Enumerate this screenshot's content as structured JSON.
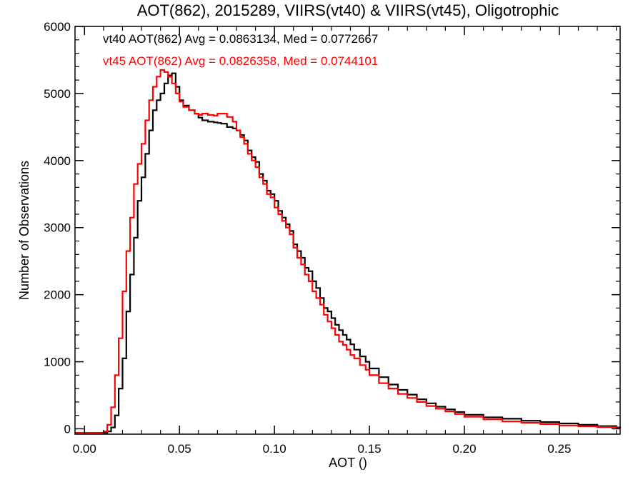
{
  "chart_data": {
    "type": "line",
    "step": true,
    "title": "AOT(862), 2015289, VIIRS(vt40) & VIIRS(vt45), Oligotrophic",
    "xlabel": "AOT ()",
    "ylabel": "Number of Observations",
    "xlim": [
      -0.005,
      0.282
    ],
    "ylim": [
      -80,
      6000
    ],
    "xticks": [
      0.0,
      0.05,
      0.1,
      0.15,
      0.2,
      0.25
    ],
    "xtick_labels": [
      "0.00",
      "0.05",
      "0.10",
      "0.15",
      "0.20",
      "0.25"
    ],
    "yticks": [
      0,
      1000,
      2000,
      3000,
      4000,
      5000,
      6000
    ],
    "ytick_labels": [
      "0",
      "1000",
      "2000",
      "3000",
      "4000",
      "5000",
      "6000"
    ],
    "grid": false,
    "annotations": [
      {
        "text": "vt40 AOT(862) Avg = 0.0863134, Med = 0.0772667",
        "color": "#000000"
      },
      {
        "text": "vt45 AOT(862) Avg = 0.0826358, Med = 0.0744101",
        "color": "#ff0000"
      }
    ],
    "series": [
      {
        "color": "#000000",
        "x": [
          -0.005,
          0.0,
          0.005,
          0.01,
          0.012,
          0.014,
          0.016,
          0.018,
          0.02,
          0.022,
          0.024,
          0.026,
          0.028,
          0.03,
          0.032,
          0.034,
          0.036,
          0.038,
          0.04,
          0.042,
          0.044,
          0.046,
          0.048,
          0.05,
          0.052,
          0.055,
          0.058,
          0.06,
          0.062,
          0.065,
          0.068,
          0.07,
          0.072,
          0.075,
          0.078,
          0.08,
          0.082,
          0.084,
          0.086,
          0.088,
          0.09,
          0.092,
          0.094,
          0.096,
          0.098,
          0.1,
          0.102,
          0.104,
          0.106,
          0.108,
          0.11,
          0.112,
          0.114,
          0.116,
          0.118,
          0.12,
          0.122,
          0.124,
          0.126,
          0.128,
          0.13,
          0.132,
          0.134,
          0.136,
          0.138,
          0.14,
          0.142,
          0.145,
          0.148,
          0.15,
          0.155,
          0.16,
          0.165,
          0.17,
          0.175,
          0.18,
          0.185,
          0.19,
          0.195,
          0.2,
          0.21,
          0.22,
          0.23,
          0.24,
          0.25,
          0.26,
          0.27,
          0.28,
          0.282
        ],
        "y": [
          -60,
          -60,
          -60,
          -60,
          -40,
          20,
          200,
          600,
          1050,
          1750,
          2300,
          2850,
          3400,
          3750,
          4100,
          4450,
          4750,
          4900,
          5000,
          5150,
          5270,
          5300,
          5100,
          4900,
          4820,
          4750,
          4700,
          4640,
          4600,
          4580,
          4570,
          4560,
          4550,
          4500,
          4480,
          4450,
          4380,
          4300,
          4150,
          4050,
          3980,
          3800,
          3700,
          3550,
          3500,
          3400,
          3250,
          3150,
          3050,
          2950,
          2750,
          2650,
          2550,
          2400,
          2350,
          2200,
          2100,
          1950,
          1800,
          1750,
          1650,
          1550,
          1470,
          1400,
          1330,
          1260,
          1180,
          1080,
          1000,
          900,
          770,
          660,
          580,
          510,
          440,
          380,
          330,
          290,
          250,
          210,
          170,
          150,
          120,
          100,
          80,
          60,
          40,
          20,
          10
        ]
      },
      {
        "color": "#ff0000",
        "x": [
          -0.005,
          0.0,
          0.005,
          0.01,
          0.012,
          0.014,
          0.016,
          0.018,
          0.02,
          0.022,
          0.024,
          0.026,
          0.028,
          0.03,
          0.032,
          0.034,
          0.036,
          0.038,
          0.04,
          0.042,
          0.044,
          0.046,
          0.048,
          0.05,
          0.052,
          0.055,
          0.058,
          0.06,
          0.062,
          0.065,
          0.068,
          0.07,
          0.072,
          0.075,
          0.078,
          0.08,
          0.082,
          0.084,
          0.086,
          0.088,
          0.09,
          0.092,
          0.094,
          0.096,
          0.098,
          0.1,
          0.102,
          0.104,
          0.106,
          0.108,
          0.11,
          0.112,
          0.114,
          0.116,
          0.118,
          0.12,
          0.122,
          0.124,
          0.126,
          0.128,
          0.13,
          0.132,
          0.134,
          0.136,
          0.138,
          0.14,
          0.142,
          0.145,
          0.148,
          0.15,
          0.155,
          0.16,
          0.165,
          0.17,
          0.175,
          0.18,
          0.185,
          0.19,
          0.195,
          0.2,
          0.21,
          0.22,
          0.23,
          0.24,
          0.25,
          0.26,
          0.27,
          0.28,
          0.282
        ],
        "y": [
          -60,
          -60,
          -60,
          -40,
          60,
          320,
          800,
          1350,
          2050,
          2650,
          3150,
          3650,
          3950,
          4250,
          4600,
          4900,
          5100,
          5250,
          5350,
          5320,
          5250,
          5150,
          5000,
          4880,
          4800,
          4750,
          4700,
          4680,
          4700,
          4680,
          4670,
          4700,
          4700,
          4650,
          4580,
          4450,
          4350,
          4250,
          4100,
          4000,
          3900,
          3750,
          3650,
          3500,
          3450,
          3300,
          3200,
          3100,
          3000,
          2900,
          2700,
          2550,
          2450,
          2300,
          2200,
          2050,
          1950,
          1850,
          1700,
          1600,
          1500,
          1400,
          1300,
          1250,
          1180,
          1100,
          1050,
          950,
          880,
          800,
          680,
          600,
          520,
          460,
          400,
          340,
          300,
          260,
          220,
          180,
          140,
          110,
          90,
          70,
          50,
          35,
          25,
          10,
          5
        ]
      }
    ]
  }
}
